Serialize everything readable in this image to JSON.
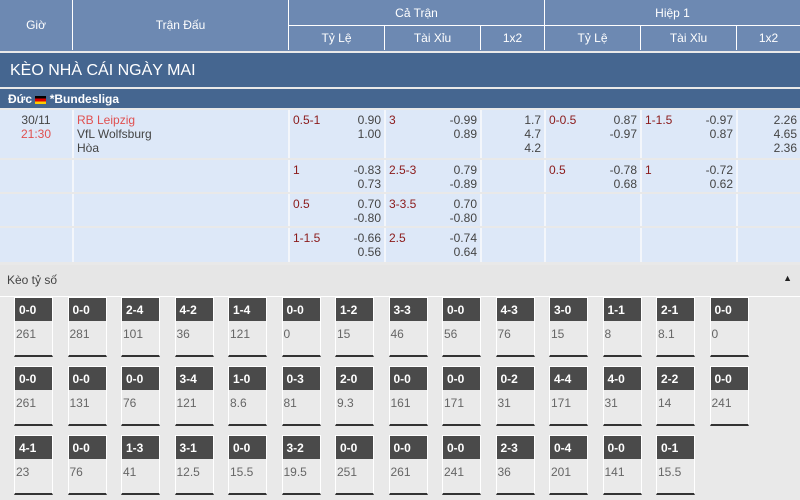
{
  "header": {
    "time": "Giờ",
    "match": "Trận Đấu",
    "full": "Cả Trận",
    "half": "Hiệp 1",
    "cols": [
      "Tỷ Lệ",
      "Tài Xỉu",
      "1x2",
      "Tỷ Lệ",
      "Tài Xỉu",
      "1x2"
    ]
  },
  "banner": "KÈO NHÀ CÁI NGÀY MAI",
  "league": {
    "country": "Đức",
    "name": "*Bundesliga"
  },
  "match": {
    "date": "30/11",
    "time": "21:30",
    "home": "RB Leipzig",
    "away": "VfL Wolfsburg",
    "draw": "Hòa"
  },
  "rows": [
    {
      "c": [
        [
          "0.5-1",
          "0.90\n1.00"
        ],
        [
          "3",
          "-0.99\n0.89"
        ],
        [
          "",
          "1.7\n4.7\n4.2"
        ],
        [
          "0-0.5",
          "0.87\n-0.97"
        ],
        [
          "1-1.5",
          "-0.97\n0.87"
        ],
        [
          "",
          "2.26\n4.65\n2.36"
        ]
      ]
    },
    {
      "c": [
        [
          "1",
          "-0.83\n0.73"
        ],
        [
          "2.5-3",
          "0.79\n-0.89"
        ],
        [
          "",
          ""
        ],
        [
          "0.5",
          "-0.78\n0.68"
        ],
        [
          "1",
          "-0.72\n0.62"
        ],
        [
          "",
          ""
        ]
      ]
    },
    {
      "c": [
        [
          "0.5",
          "0.70\n-0.80"
        ],
        [
          "3-3.5",
          "0.70\n-0.80"
        ],
        [
          "",
          ""
        ],
        [
          "",
          ""
        ],
        [
          "",
          ""
        ],
        [
          "",
          ""
        ]
      ]
    },
    {
      "c": [
        [
          "1-1.5",
          "-0.66\n0.56"
        ],
        [
          "2.5",
          "-0.74\n0.64"
        ],
        [
          "",
          ""
        ],
        [
          "",
          ""
        ],
        [
          "",
          ""
        ],
        [
          "",
          ""
        ]
      ]
    }
  ],
  "score_section": {
    "title": "Kèo tỷ số",
    "toggle_icon": "triangle-up-icon"
  },
  "scores": [
    [
      [
        "0-0",
        "261"
      ],
      [
        "0-0",
        "281"
      ],
      [
        "2-4",
        "101"
      ],
      [
        "4-2",
        "36"
      ],
      [
        "1-4",
        "121"
      ],
      [
        "0-0",
        "0"
      ],
      [
        "1-2",
        "15"
      ],
      [
        "3-3",
        "46"
      ],
      [
        "0-0",
        "56"
      ],
      [
        "4-3",
        "76"
      ],
      [
        "3-0",
        "15"
      ],
      [
        "1-1",
        "8"
      ],
      [
        "2-1",
        "8.1"
      ],
      [
        "0-0",
        "0"
      ]
    ],
    [
      [
        "0-0",
        "261"
      ],
      [
        "0-0",
        "131"
      ],
      [
        "0-0",
        "76"
      ],
      [
        "3-4",
        "121"
      ],
      [
        "1-0",
        "8.6"
      ],
      [
        "0-3",
        "81"
      ],
      [
        "2-0",
        "9.3"
      ],
      [
        "0-0",
        "161"
      ],
      [
        "0-0",
        "171"
      ],
      [
        "0-2",
        "31"
      ],
      [
        "4-4",
        "171"
      ],
      [
        "4-0",
        "31"
      ],
      [
        "2-2",
        "14"
      ],
      [
        "0-0",
        "241"
      ]
    ],
    [
      [
        "4-1",
        "23"
      ],
      [
        "0-0",
        "76"
      ],
      [
        "1-3",
        "41"
      ],
      [
        "3-1",
        "12.5"
      ],
      [
        "0-0",
        "15.5"
      ],
      [
        "3-2",
        "19.5"
      ],
      [
        "0-0",
        "251"
      ],
      [
        "0-0",
        "261"
      ],
      [
        "0-0",
        "241"
      ],
      [
        "2-3",
        "36"
      ],
      [
        "0-4",
        "201"
      ],
      [
        "0-0",
        "141"
      ],
      [
        "0-1",
        "15.5"
      ]
    ]
  ]
}
